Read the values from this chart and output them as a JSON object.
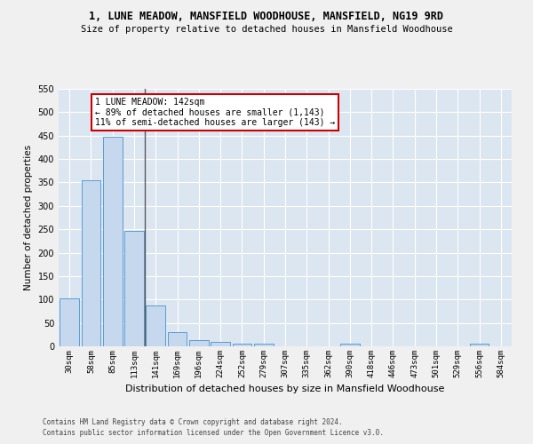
{
  "title": "1, LUNE MEADOW, MANSFIELD WOODHOUSE, MANSFIELD, NG19 9RD",
  "subtitle": "Size of property relative to detached houses in Mansfield Woodhouse",
  "xlabel": "Distribution of detached houses by size in Mansfield Woodhouse",
  "ylabel": "Number of detached properties",
  "footer1": "Contains HM Land Registry data © Crown copyright and database right 2024.",
  "footer2": "Contains public sector information licensed under the Open Government Licence v3.0.",
  "categories": [
    "30sqm",
    "58sqm",
    "85sqm",
    "113sqm",
    "141sqm",
    "169sqm",
    "196sqm",
    "224sqm",
    "252sqm",
    "279sqm",
    "307sqm",
    "335sqm",
    "362sqm",
    "390sqm",
    "418sqm",
    "446sqm",
    "473sqm",
    "501sqm",
    "529sqm",
    "556sqm",
    "584sqm"
  ],
  "values": [
    103,
    354,
    448,
    246,
    88,
    30,
    13,
    9,
    6,
    6,
    0,
    0,
    0,
    6,
    0,
    0,
    0,
    0,
    0,
    6,
    0
  ],
  "bar_color": "#c5d8ee",
  "bar_edge_color": "#5b9bd5",
  "background_color": "#dce6f1",
  "grid_color": "#ffffff",
  "vline_x_index": 4,
  "vline_color": "#595959",
  "annotation_line1": "1 LUNE MEADOW: 142sqm",
  "annotation_line2": "← 89% of detached houses are smaller (1,143)",
  "annotation_line3": "11% of semi-detached houses are larger (143) →",
  "annotation_box_color": "#ffffff",
  "annotation_border_color": "#cc0000",
  "ylim": [
    0,
    550
  ],
  "yticks": [
    0,
    50,
    100,
    150,
    200,
    250,
    300,
    350,
    400,
    450,
    500,
    550
  ],
  "fig_bg_color": "#f0f0f0",
  "title_fontsize": 8.5,
  "subtitle_fontsize": 7.5
}
